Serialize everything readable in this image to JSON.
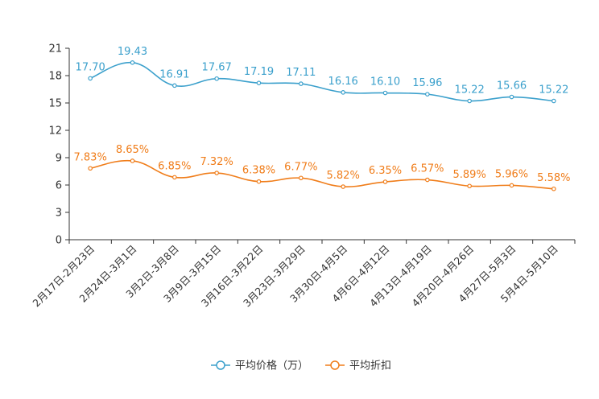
{
  "chart_data": {
    "type": "line",
    "title": "",
    "xlabel": "",
    "ylabel": "",
    "ylim": [
      0,
      21
    ],
    "yticks": [
      0,
      3,
      6,
      9,
      12,
      15,
      18,
      21
    ],
    "categories": [
      "2月17日-2月23日",
      "2月24日-3月1日",
      "3月2日-3月8日",
      "3月9日-3月15日",
      "3月16日-3月22日",
      "3月23日-3月29日",
      "3月30日-4月5日",
      "4月6日-4月12日",
      "4月13日-4月19日",
      "4月20日-4月26日",
      "4月27日-5月3日",
      "5月4日-5月10日"
    ],
    "series": [
      {
        "name": "平均价格（万）",
        "color": "#3ba0cc",
        "values": [
          17.7,
          19.43,
          16.91,
          17.67,
          17.19,
          17.11,
          16.16,
          16.1,
          15.96,
          15.22,
          15.66,
          15.22
        ],
        "labels": [
          "17.70",
          "19.43",
          "16.91",
          "17.67",
          "17.19",
          "17.11",
          "16.16",
          "16.10",
          "15.96",
          "15.22",
          "15.66",
          "15.22"
        ]
      },
      {
        "name": "平均折扣",
        "color": "#f07d1a",
        "values": [
          7.83,
          8.65,
          6.85,
          7.32,
          6.38,
          6.77,
          5.82,
          6.35,
          6.57,
          5.89,
          5.96,
          5.58
        ],
        "labels": [
          "7.83%",
          "8.65%",
          "6.85%",
          "7.32%",
          "6.38%",
          "6.77%",
          "5.82%",
          "6.35%",
          "6.57%",
          "5.89%",
          "5.96%",
          "5.58%"
        ]
      }
    ],
    "legend_position": "bottom"
  }
}
